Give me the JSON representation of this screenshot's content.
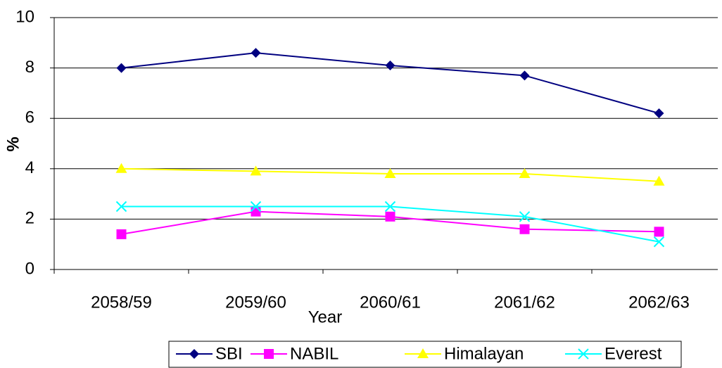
{
  "chart_data": {
    "type": "line",
    "x_label": "Year",
    "y_label": "%",
    "categories": [
      "2058/59",
      "2059/60",
      "2060/61",
      "2061/62",
      "2062/63"
    ],
    "series": [
      {
        "name": "SBI",
        "color": "#000080",
        "marker": "diamond",
        "values": [
          8,
          8.6,
          8.1,
          7.7,
          6.2
        ]
      },
      {
        "name": "NABIL",
        "color": "#ff00ff",
        "marker": "square",
        "values": [
          1.4,
          2.3,
          2.1,
          1.6,
          1.5
        ]
      },
      {
        "name": "Himalayan",
        "color": "#ffff00",
        "marker": "triangle",
        "values": [
          4,
          3.9,
          3.8,
          3.8,
          3.5
        ]
      },
      {
        "name": "Everest",
        "color": "#00ffff",
        "marker": "x",
        "values": [
          2.5,
          2.5,
          2.5,
          2.1,
          1.1
        ]
      }
    ],
    "ylim": [
      0,
      10
    ],
    "yticks": [
      0,
      2,
      4,
      6,
      8,
      10
    ],
    "grid": true,
    "legend": "bottom"
  }
}
